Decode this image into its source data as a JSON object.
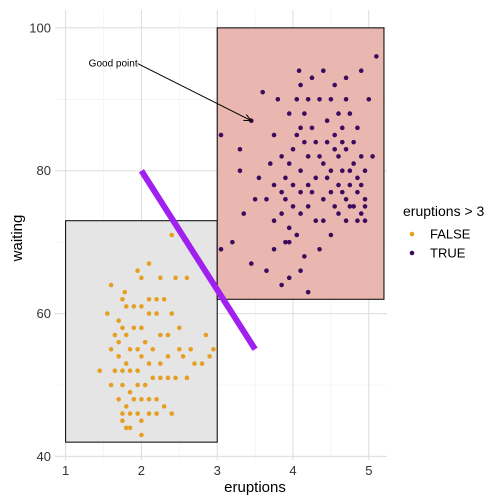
{
  "chart_data": {
    "type": "scatter",
    "xlabel": "eruptions",
    "ylabel": "waiting",
    "xlim": [
      0.86,
      5.24
    ],
    "ylim": [
      39.5,
      102.5
    ],
    "x_ticks": [
      1,
      2,
      3,
      4,
      5
    ],
    "y_ticks": [
      40,
      60,
      80,
      100
    ],
    "grid": true,
    "legend": {
      "title": "eruptions > 3",
      "placement": "right",
      "entries": [
        {
          "label": "FALSE",
          "color": "#E69F25"
        },
        {
          "label": "TRUE",
          "color": "#3C0A5E"
        }
      ]
    },
    "rectangles": [
      {
        "xmin": 1,
        "xmax": 3,
        "ymin": 42,
        "ymax": 73,
        "fill": "#E5E5E5",
        "stroke": "#000000"
      },
      {
        "xmin": 3,
        "xmax": 5.2,
        "ymin": 62,
        "ymax": 100,
        "fill": "#E9B7AF",
        "stroke": "#000000"
      }
    ],
    "segment": {
      "x1": 2,
      "y1": 80,
      "x2": 3.5,
      "y2": 55,
      "color": "#A020F0"
    },
    "annotation": {
      "label": "Good point",
      "text_x": 1.95,
      "text_y": 95,
      "arrow_to_x": 3.45,
      "arrow_to_y": 87
    },
    "series": [
      {
        "name": "FALSE",
        "color": "#E69F25",
        "points": [
          [
            2.4,
            71
          ],
          [
            1.95,
            66
          ],
          [
            1.78,
            63
          ],
          [
            1.75,
            62
          ],
          [
            1.8,
            61
          ],
          [
            2.1,
            67
          ],
          [
            2.0,
            65
          ],
          [
            2.25,
            65
          ],
          [
            2.45,
            65
          ],
          [
            2.6,
            65
          ],
          [
            2.3,
            62
          ],
          [
            2.2,
            60
          ],
          [
            2.1,
            60
          ],
          [
            2.0,
            58
          ],
          [
            1.9,
            58
          ],
          [
            1.8,
            57
          ],
          [
            1.75,
            58
          ],
          [
            1.7,
            56
          ],
          [
            1.85,
            55
          ],
          [
            1.95,
            55
          ],
          [
            2.05,
            56
          ],
          [
            2.15,
            55
          ],
          [
            2.25,
            57
          ],
          [
            2.35,
            57
          ],
          [
            2.5,
            58
          ],
          [
            2.65,
            55
          ],
          [
            2.85,
            57
          ],
          [
            2.95,
            55
          ],
          [
            2.9,
            54
          ],
          [
            2.7,
            53
          ],
          [
            2.55,
            54
          ],
          [
            2.35,
            54
          ],
          [
            2.25,
            53
          ],
          [
            2.1,
            53
          ],
          [
            1.95,
            52
          ],
          [
            1.85,
            52
          ],
          [
            1.75,
            52
          ],
          [
            1.65,
            52
          ],
          [
            1.6,
            50
          ],
          [
            1.75,
            50
          ],
          [
            1.85,
            49
          ],
          [
            1.95,
            50
          ],
          [
            2.05,
            50
          ],
          [
            2.15,
            51
          ],
          [
            2.25,
            51
          ],
          [
            2.35,
            51
          ],
          [
            2.45,
            51
          ],
          [
            2.6,
            51
          ],
          [
            2.8,
            53
          ],
          [
            1.7,
            48
          ],
          [
            1.8,
            47
          ],
          [
            1.9,
            48
          ],
          [
            2.0,
            48
          ],
          [
            2.1,
            48
          ],
          [
            2.2,
            48
          ],
          [
            2.3,
            47
          ],
          [
            1.75,
            46
          ],
          [
            1.85,
            46
          ],
          [
            1.95,
            46
          ],
          [
            2.0,
            45
          ],
          [
            2.1,
            46
          ],
          [
            2.2,
            46
          ],
          [
            2.4,
            46
          ],
          [
            1.75,
            45
          ],
          [
            1.85,
            44
          ],
          [
            2.0,
            43
          ],
          [
            1.8,
            44
          ],
          [
            1.6,
            64
          ],
          [
            1.55,
            60
          ],
          [
            1.65,
            57
          ],
          [
            1.9,
            61
          ],
          [
            2.0,
            61
          ],
          [
            2.1,
            62
          ],
          [
            2.2,
            62
          ],
          [
            2.4,
            60
          ],
          [
            2.5,
            55
          ],
          [
            1.7,
            54
          ],
          [
            1.8,
            53
          ],
          [
            1.6,
            55
          ],
          [
            1.45,
            52
          ],
          [
            1.7,
            59
          ],
          [
            2.0,
            54
          ]
        ]
      },
      {
        "name": "TRUE",
        "color": "#3C0A5E",
        "points": [
          [
            3.05,
            69
          ],
          [
            3.2,
            70
          ],
          [
            3.35,
            74
          ],
          [
            3.5,
            76
          ],
          [
            3.55,
            79
          ],
          [
            3.3,
            80
          ],
          [
            3.3,
            83
          ],
          [
            3.45,
            87
          ],
          [
            3.7,
            81
          ],
          [
            3.75,
            78
          ],
          [
            3.65,
            76
          ],
          [
            3.75,
            73
          ],
          [
            3.85,
            74
          ],
          [
            3.95,
            72
          ],
          [
            3.95,
            70
          ],
          [
            3.95,
            65
          ],
          [
            3.85,
            64
          ],
          [
            3.45,
            67
          ],
          [
            3.65,
            66
          ],
          [
            3.75,
            69
          ],
          [
            3.85,
            77
          ],
          [
            3.9,
            79
          ],
          [
            3.95,
            81
          ],
          [
            4.0,
            83
          ],
          [
            4.05,
            85
          ],
          [
            4.1,
            86
          ],
          [
            4.15,
            88
          ],
          [
            4.2,
            90
          ],
          [
            4.1,
            92
          ],
          [
            4.08,
            94
          ],
          [
            4.25,
            93
          ],
          [
            4.4,
            94
          ],
          [
            4.5,
            90
          ],
          [
            4.55,
            92
          ],
          [
            4.6,
            88
          ],
          [
            4.65,
            86
          ],
          [
            4.7,
            90
          ],
          [
            4.75,
            88
          ],
          [
            4.8,
            84
          ],
          [
            4.85,
            86
          ],
          [
            4.9,
            82
          ],
          [
            4.95,
            80
          ],
          [
            4.1,
            80
          ],
          [
            4.2,
            82
          ],
          [
            4.3,
            84
          ],
          [
            4.4,
            81
          ],
          [
            4.5,
            80
          ],
          [
            4.6,
            82
          ],
          [
            4.7,
            83
          ],
          [
            4.8,
            81
          ],
          [
            4.9,
            78
          ],
          [
            4.0,
            78
          ],
          [
            4.1,
            77
          ],
          [
            4.2,
            78
          ],
          [
            4.3,
            79
          ],
          [
            4.4,
            76
          ],
          [
            4.5,
            77
          ],
          [
            4.6,
            78
          ],
          [
            4.7,
            76
          ],
          [
            4.8,
            75
          ],
          [
            4.9,
            74
          ],
          [
            4.95,
            75
          ],
          [
            3.9,
            76
          ],
          [
            4.0,
            75
          ],
          [
            4.1,
            74
          ],
          [
            4.2,
            75
          ],
          [
            4.3,
            73
          ],
          [
            4.4,
            73
          ],
          [
            4.6,
            74
          ],
          [
            4.7,
            73
          ],
          [
            4.5,
            71
          ],
          [
            4.15,
            68
          ],
          [
            4.35,
            69
          ],
          [
            4.2,
            63
          ],
          [
            4.1,
            66
          ],
          [
            4.35,
            90
          ],
          [
            4.45,
            87
          ],
          [
            4.55,
            85
          ],
          [
            4.65,
            84
          ],
          [
            4.75,
            80
          ],
          [
            4.85,
            79
          ],
          [
            4.05,
            90
          ],
          [
            4.15,
            84
          ],
          [
            4.25,
            86
          ],
          [
            4.35,
            82
          ],
          [
            4.45,
            84
          ],
          [
            4.55,
            83
          ],
          [
            4.65,
            80
          ],
          [
            4.75,
            78
          ],
          [
            4.85,
            77
          ],
          [
            4.95,
            76
          ],
          [
            5.05,
            82
          ],
          [
            5.1,
            96
          ],
          [
            4.9,
            94
          ],
          [
            5.0,
            90
          ],
          [
            3.05,
            85
          ],
          [
            3.9,
            70
          ],
          [
            4.05,
            71
          ],
          [
            3.8,
            90
          ],
          [
            3.6,
            91
          ],
          [
            3.75,
            85
          ],
          [
            3.85,
            82
          ],
          [
            3.95,
            88
          ],
          [
            4.25,
            77
          ],
          [
            4.45,
            79
          ],
          [
            4.55,
            75
          ],
          [
            4.65,
            77
          ],
          [
            4.75,
            75
          ],
          [
            4.85,
            73
          ],
          [
            4.95,
            73
          ],
          [
            4.7,
            93
          ]
        ]
      }
    ]
  }
}
